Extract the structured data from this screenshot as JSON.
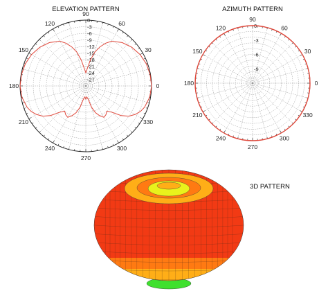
{
  "chart_data": [
    {
      "type": "polar-line",
      "title": "ELEVATION PATTERN",
      "angle_labels": [
        "0",
        "30",
        "60",
        "90",
        "120",
        "150",
        "180",
        "210",
        "240",
        "270",
        "300",
        "330"
      ],
      "r_labels": [
        "0",
        "-3",
        "-6",
        "-9",
        "-12",
        "-15",
        "-18",
        "-21",
        "-24",
        "-27"
      ],
      "rlim": [
        -30,
        0
      ],
      "grid": true,
      "series_color": "#e0473a",
      "series": [
        {
          "theta": [
            0,
            10,
            20,
            30,
            40,
            50,
            60,
            65,
            70,
            75,
            80,
            85,
            90,
            95,
            100,
            105,
            110,
            115,
            120,
            130,
            140,
            150,
            160,
            170,
            180,
            190,
            200,
            205,
            210,
            215,
            220,
            225,
            230,
            235,
            240,
            245,
            250,
            255,
            260,
            265,
            270,
            275,
            280,
            285,
            290,
            295,
            300,
            305,
            310,
            315,
            320,
            325,
            330,
            335,
            340,
            350
          ],
          "values": [
            0,
            -0.2,
            -0.6,
            -1.4,
            -2.6,
            -4.2,
            -6.5,
            -8.5,
            -11,
            -14,
            -18,
            -22,
            -24,
            -22,
            -18,
            -14,
            -11,
            -8.5,
            -6.5,
            -4.2,
            -2.6,
            -1.4,
            -0.6,
            -0.2,
            0,
            -0.4,
            -1.5,
            -2.5,
            -4,
            -6,
            -9,
            -13,
            -15,
            -14,
            -13.5,
            -15,
            -17,
            -20,
            -24,
            -25,
            -24,
            -25,
            -24,
            -20,
            -17,
            -15,
            -13.5,
            -14,
            -15,
            -13,
            -9,
            -6,
            -4,
            -2.5,
            -1.5,
            -0.4
          ]
        }
      ]
    },
    {
      "type": "polar-line",
      "title": "AZIMUTH PATTERN",
      "angle_labels": [
        "0",
        "30",
        "60",
        "90",
        "120",
        "150",
        "180",
        "210",
        "240",
        "270",
        "300",
        "330"
      ],
      "r_labels": [
        "0",
        "-3",
        "-6",
        "-9"
      ],
      "rlim": [
        -12,
        0
      ],
      "grid": true,
      "series_color": "#e0473a",
      "series": [
        {
          "theta": [
            0,
            30,
            60,
            90,
            120,
            150,
            180,
            210,
            240,
            270,
            300,
            330
          ],
          "values": [
            0,
            0,
            0,
            0,
            0,
            0,
            0,
            0,
            0,
            0,
            0,
            0
          ]
        }
      ]
    }
  ],
  "pattern3d": {
    "title": "3D PATTERN",
    "colors": {
      "red": "#f23a14",
      "orange": "#ff7a12",
      "amber": "#ffae17",
      "yellow": "#e9f21c",
      "green": "#3fe02e"
    }
  }
}
